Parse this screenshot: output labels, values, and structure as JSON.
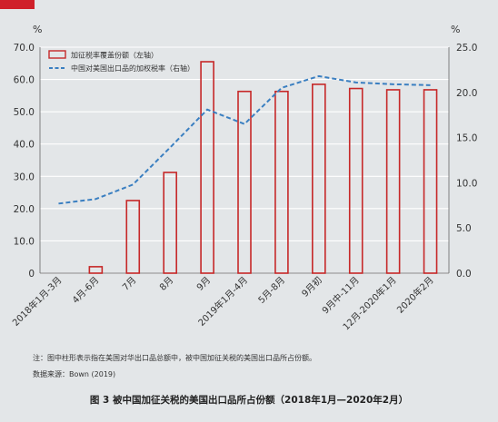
{
  "chart_data": {
    "type": "bar",
    "categories": [
      "2018年1月-3月",
      "4月-6月",
      "7月",
      "8月",
      "9月",
      "2019年1月-4月",
      "5月-8月",
      "9月初",
      "9月中-11月",
      "12月-2020年1月",
      "2020年2月"
    ],
    "series": [
      {
        "name": "加征税率覆盖份额（左轴）",
        "type": "bar",
        "axis": "left",
        "values": [
          0,
          2.0,
          22.5,
          31.2,
          65.5,
          56.3,
          56.3,
          58.5,
          57.2,
          56.8,
          56.8
        ],
        "color": "#c62828"
      },
      {
        "name": "中国对美国出口品的加权税率（右轴）",
        "type": "line",
        "axis": "right",
        "values": [
          7.7,
          8.2,
          9.8,
          13.9,
          18.1,
          16.5,
          20.5,
          21.8,
          21.1,
          20.9,
          20.8
        ],
        "color": "#3a7fc1",
        "dashed": true
      }
    ],
    "left_axis": {
      "unit": "%",
      "ylim": [
        0,
        70
      ],
      "ticks": [
        "0",
        "10.0",
        "20.0",
        "30.0",
        "40.0",
        "50.0",
        "60.0",
        "70.0"
      ]
    },
    "right_axis": {
      "unit": "%",
      "ylim": [
        0,
        25
      ],
      "ticks": [
        "0.0",
        "5.0",
        "10.0",
        "15.0",
        "20.0",
        "25.0"
      ]
    },
    "grid": true,
    "legend": "top-left"
  },
  "note": "注：图中柱形表示指在美国对华出口品总额中，被中国加征关税的美国出口品所占份额。",
  "source": "数据来源：Bown (2019)",
  "caption": "图 3 被中国加征关税的美国出口品所占份额（2018年1月—2020年2月）"
}
